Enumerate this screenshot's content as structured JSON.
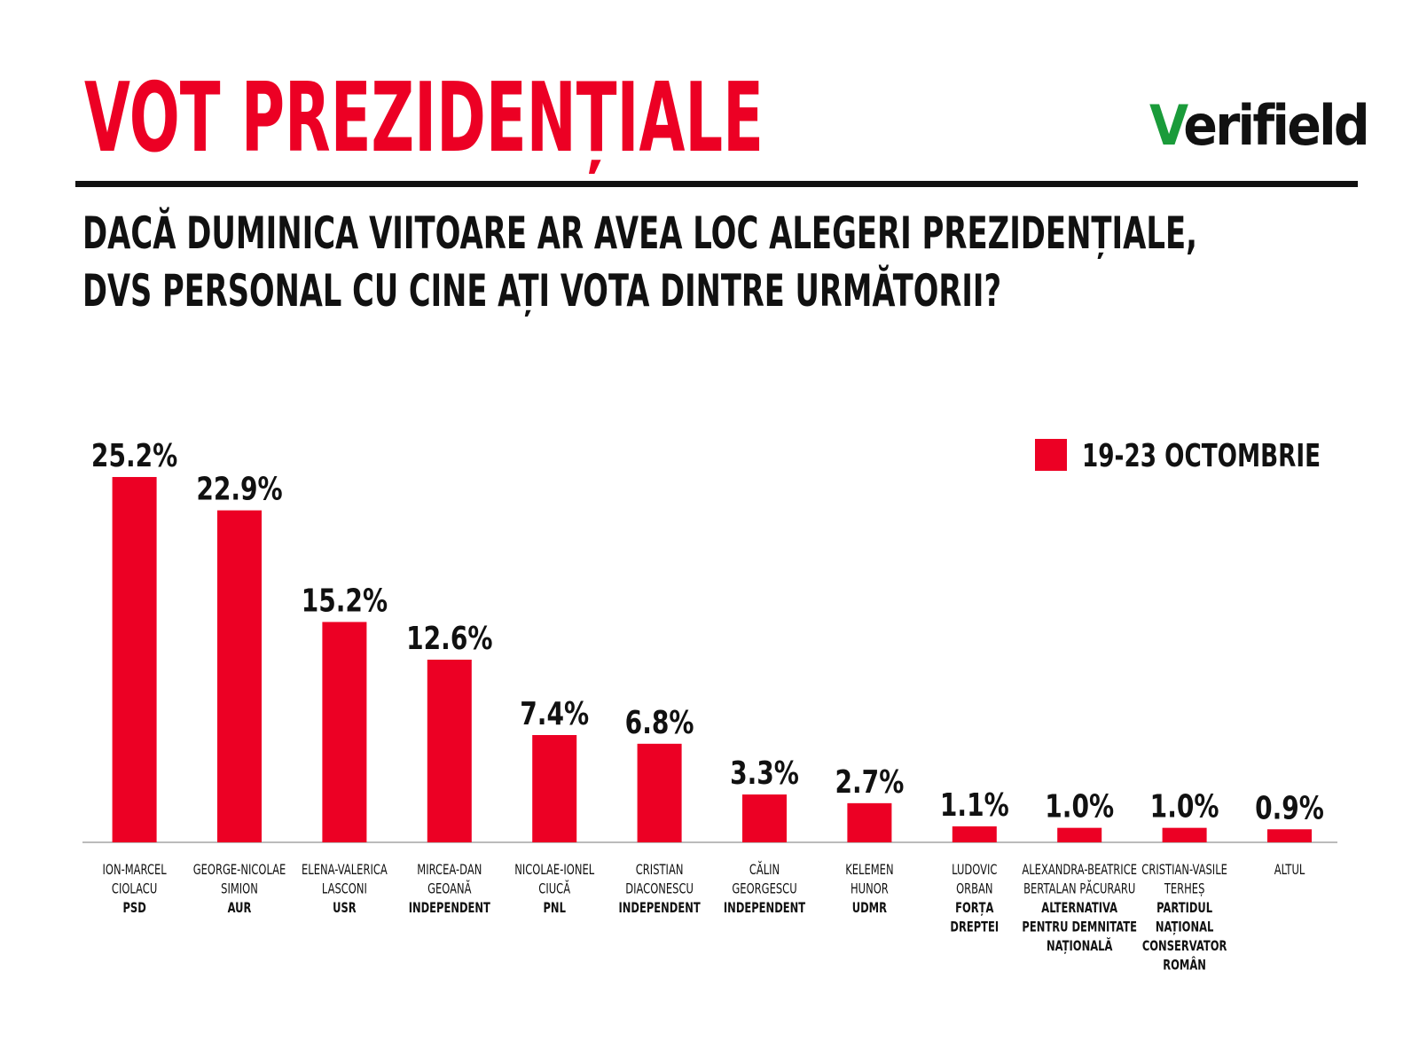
{
  "logo": "Verifield",
  "chart_data": {
    "type": "bar",
    "title": "VOT PREZIDENȚIALE",
    "subtitle": [
      "DACĂ DUMINICA VIITOARE AR AVEA LOC ALEGERI PREZIDENȚIALE,",
      "DVS PERSONAL CU CINE AȚI VOTA DINTRE URMĂTORII?"
    ],
    "categories": [
      [
        "ION-MARCEL",
        "CIOLACU"
      ],
      [
        "GEORGE-NICOLAE",
        "SIMION"
      ],
      [
        "ELENA-VALERICA",
        "LASCONI"
      ],
      [
        "MIRCEA-DAN",
        "GEOANĂ"
      ],
      [
        "NICOLAE-IONEL",
        "CIUCĂ"
      ],
      [
        "CRISTIAN",
        "DIACONESCU"
      ],
      [
        "CĂLIN",
        "GEORGESCU"
      ],
      [
        "KELEMEN",
        "HUNOR"
      ],
      [
        "LUDOVIC",
        "ORBAN"
      ],
      [
        "ALEXANDRA-BEATRICE",
        "BERTALAN PĂCURARU"
      ],
      [
        "CRISTIAN-VASILE",
        "TERHEȘ"
      ],
      [
        "ALTUL"
      ]
    ],
    "parties": [
      [
        "PSD"
      ],
      [
        "AUR"
      ],
      [
        "USR"
      ],
      [
        "INDEPENDENT"
      ],
      [
        "PNL"
      ],
      [
        "INDEPENDENT"
      ],
      [
        "INDEPENDENT"
      ],
      [
        "UDMR"
      ],
      [
        "FORȚA",
        "DREPTEI"
      ],
      [
        "ALTERNATIVA",
        "PENTRU DEMNITATE",
        "NAȚIONALĂ"
      ],
      [
        "PARTIDUL",
        "NAȚIONAL",
        "CONSERVATOR",
        "ROMÂN"
      ],
      null
    ],
    "series": [
      {
        "name": "19-23 OCTOMBRIE",
        "color": "#ec0024",
        "values": [
          25.2,
          22.9,
          15.2,
          12.6,
          7.4,
          6.8,
          3.3,
          2.7,
          1.1,
          1.0,
          1.0,
          0.9
        ],
        "value_labels": [
          "25.2%",
          "22.9%",
          "15.2%",
          "12.6%",
          "7.4%",
          "6.8%",
          "3.3%",
          "2.7%",
          "1.1%",
          "1.0%",
          "1.0%",
          "0.9%"
        ]
      }
    ],
    "legend": "top-right"
  }
}
